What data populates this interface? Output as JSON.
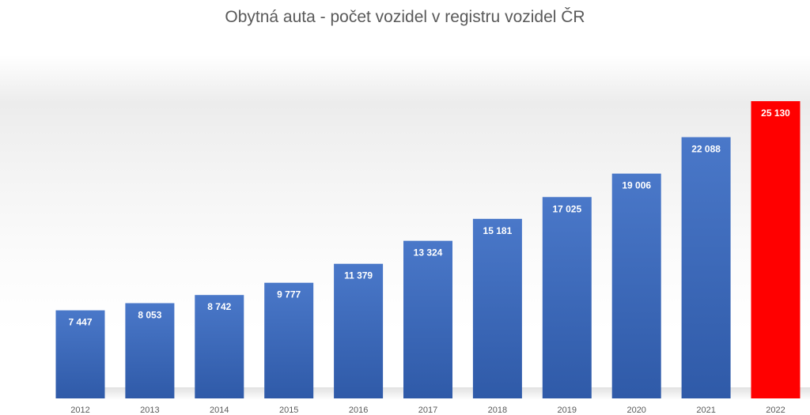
{
  "chart_data": {
    "type": "bar",
    "title": "Obytná auta - počet vozidel v registru vozidel ČR",
    "xlabel": "",
    "ylabel": "",
    "categories": [
      "2012",
      "2013",
      "2014",
      "2015",
      "2016",
      "2017",
      "2018",
      "2019",
      "2020",
      "2021",
      "2022"
    ],
    "values": [
      7447,
      8053,
      8742,
      9777,
      11379,
      13324,
      15181,
      17025,
      19006,
      22088,
      25130
    ],
    "value_labels": [
      "7 447",
      "8 053",
      "8 742",
      "9 777",
      "11 379",
      "13 324",
      "15 181",
      "17 025",
      "19 006",
      "22 088",
      "25 130"
    ],
    "colors": {
      "bar_top": "#4a78c9",
      "bar_bottom": "#2f5aa8",
      "highlight": "#ff0000",
      "highlight_category": "2022"
    },
    "grid": false,
    "legend": "none"
  }
}
